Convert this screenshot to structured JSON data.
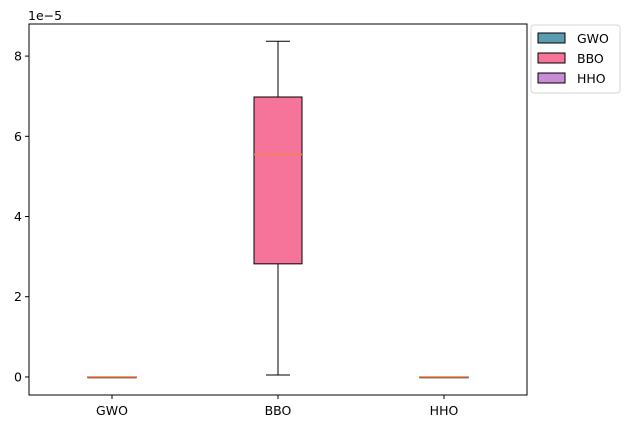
{
  "chart_data": {
    "type": "boxplot",
    "categories": [
      "GWO",
      "BBO",
      "HHO"
    ],
    "y_scale_label": "1e−5",
    "ylim": [
      -0.45,
      8.8
    ],
    "yticks": [
      0,
      2,
      4,
      6,
      8
    ],
    "ytick_labels": [
      "0",
      "2",
      "4",
      "6",
      "8"
    ],
    "grid": false,
    "legend_position": "outside-top-right",
    "series": [
      {
        "name": "GWO",
        "color": "#5b9cb1",
        "whisker_low": 0.0,
        "q1": 0.0,
        "median": 0.0,
        "q3": 0.0,
        "whisker_high": 0.0
      },
      {
        "name": "BBO",
        "color": "#f6749a",
        "whisker_low": 0.05,
        "q1": 2.82,
        "median": 5.55,
        "q3": 6.98,
        "whisker_high": 8.37
      },
      {
        "name": "HHO",
        "color": "#c98bd6",
        "whisker_low": 0.0,
        "q1": 0.0,
        "median": 0.0,
        "q3": 0.0,
        "whisker_high": 0.0
      }
    ],
    "median_color": "#f5824a"
  }
}
